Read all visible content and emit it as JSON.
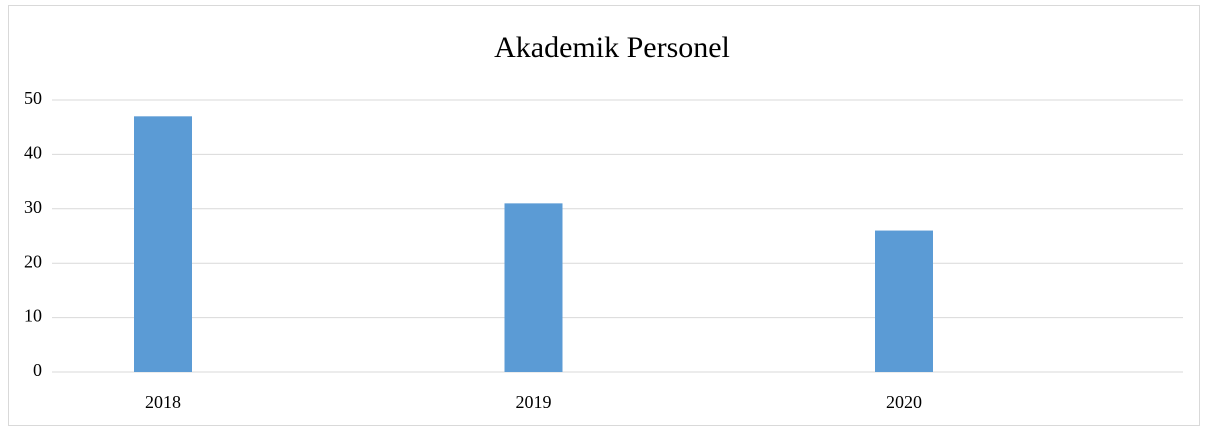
{
  "chart_data": {
    "type": "bar",
    "title": "Akademik Personel",
    "categories": [
      "2018",
      "2019",
      "2020"
    ],
    "values": [
      47,
      31,
      26
    ],
    "color": "#5b9bd5",
    "ylim": [
      0,
      50
    ],
    "yticks": [
      0,
      10,
      20,
      30,
      40,
      50
    ],
    "grid": true
  }
}
